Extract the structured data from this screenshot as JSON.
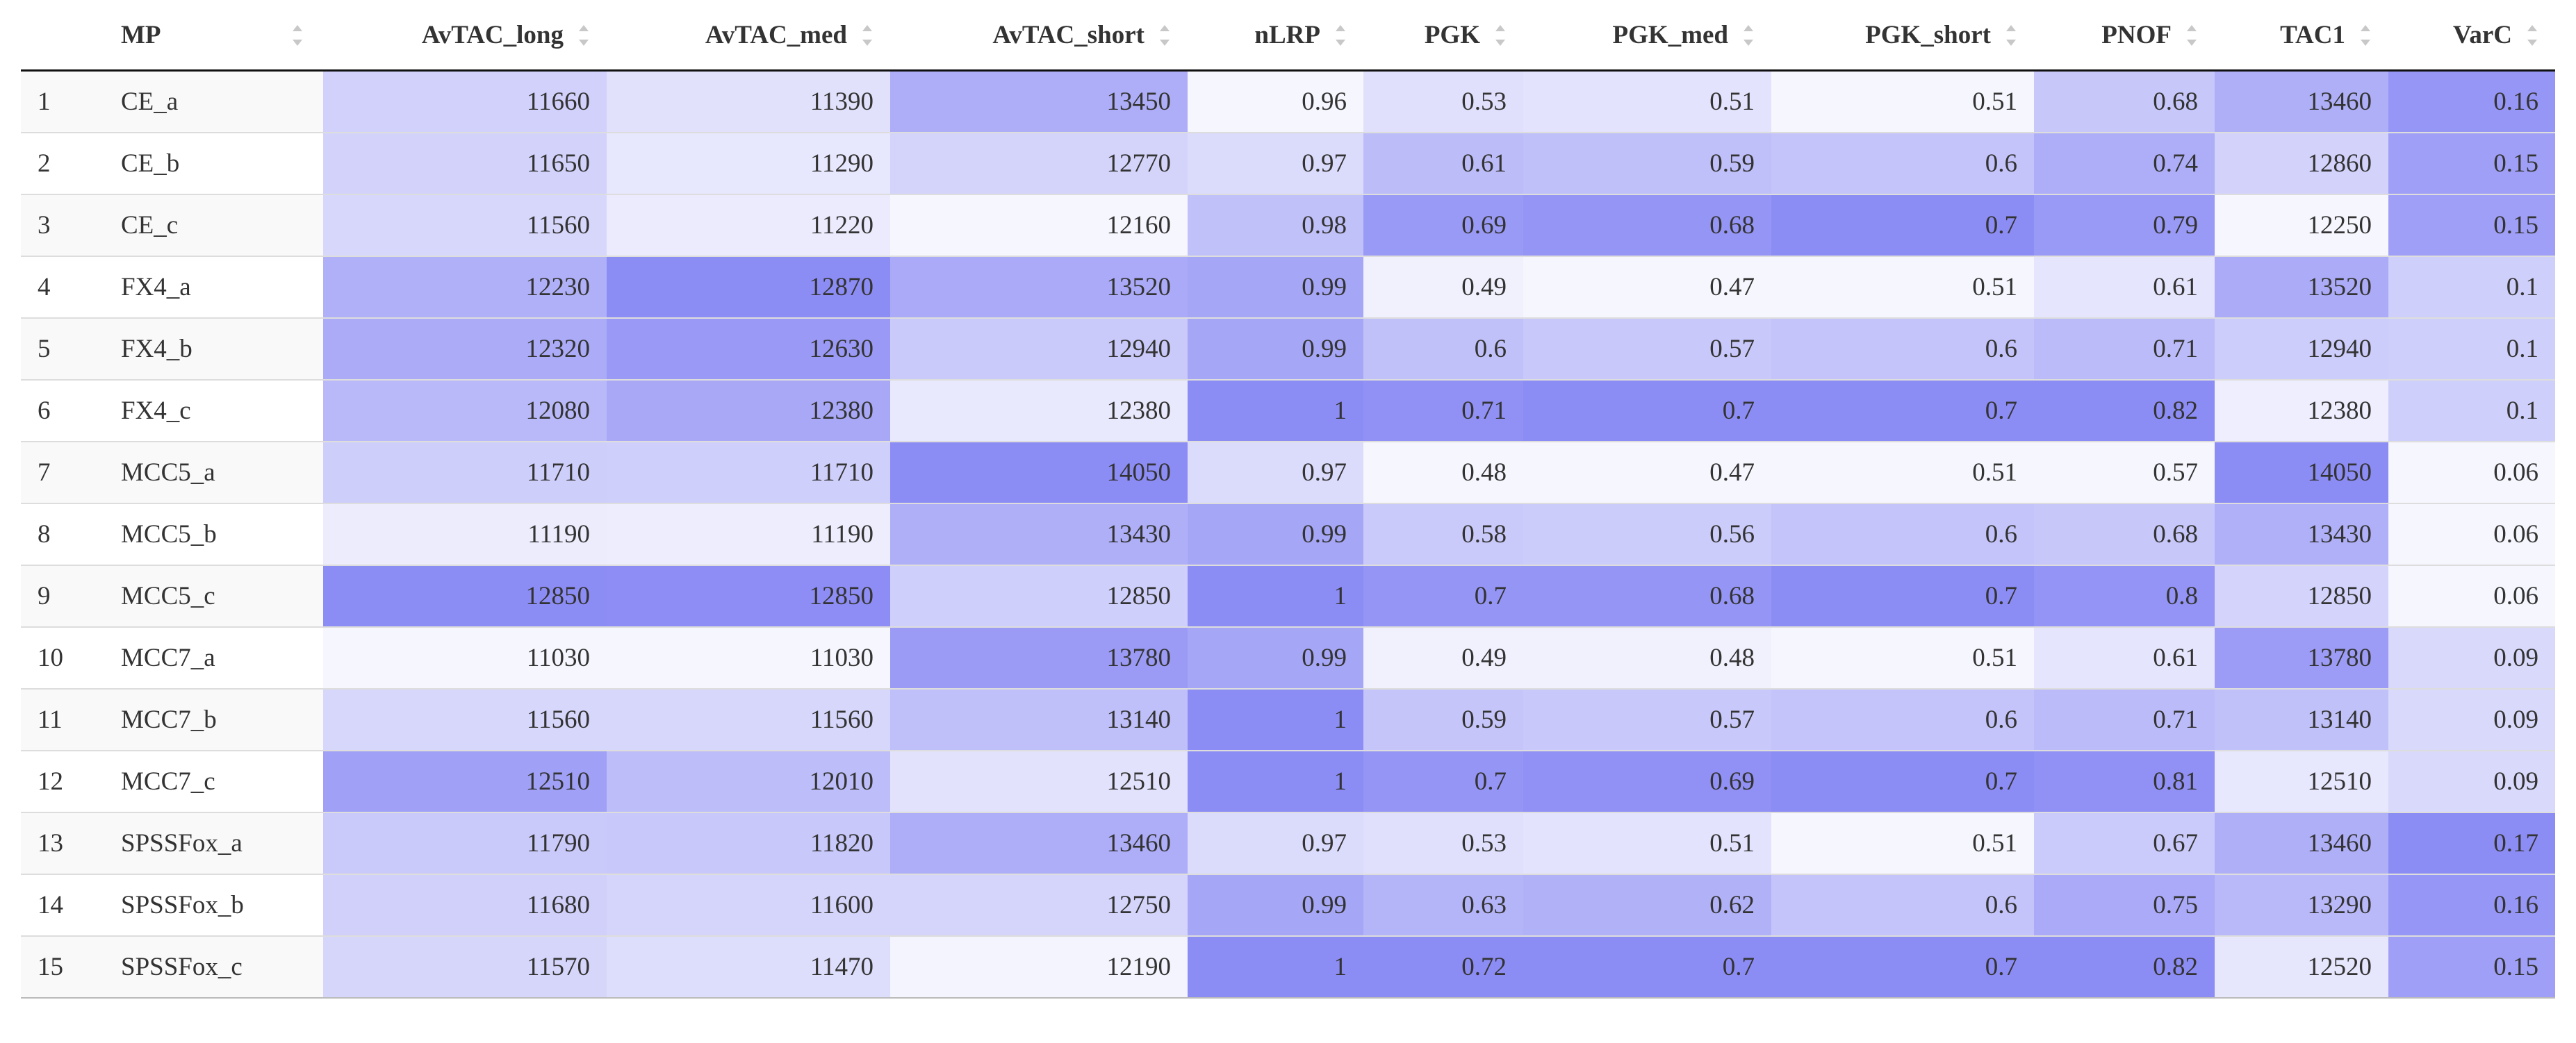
{
  "table": {
    "columns": [
      "",
      "MP",
      "AvTAC_long",
      "AvTAC_med",
      "AvTAC_short",
      "nLRP",
      "PGK",
      "PGK_med",
      "PGK_short",
      "PNOF",
      "TAC1",
      "VarC"
    ],
    "rows": [
      [
        "1",
        "CE_a",
        "11660",
        "11390",
        "13450",
        "0.96",
        "0.53",
        "0.51",
        "0.51",
        "0.68",
        "13460",
        "0.16"
      ],
      [
        "2",
        "CE_b",
        "11650",
        "11290",
        "12770",
        "0.97",
        "0.61",
        "0.59",
        "0.6",
        "0.74",
        "12860",
        "0.15"
      ],
      [
        "3",
        "CE_c",
        "11560",
        "11220",
        "12160",
        "0.98",
        "0.69",
        "0.68",
        "0.7",
        "0.79",
        "12250",
        "0.15"
      ],
      [
        "4",
        "FX4_a",
        "12230",
        "12870",
        "13520",
        "0.99",
        "0.49",
        "0.47",
        "0.51",
        "0.61",
        "13520",
        "0.1"
      ],
      [
        "5",
        "FX4_b",
        "12320",
        "12630",
        "12940",
        "0.99",
        "0.6",
        "0.57",
        "0.6",
        "0.71",
        "12940",
        "0.1"
      ],
      [
        "6",
        "FX4_c",
        "12080",
        "12380",
        "12380",
        "1",
        "0.71",
        "0.7",
        "0.7",
        "0.82",
        "12380",
        "0.1"
      ],
      [
        "7",
        "MCC5_a",
        "11710",
        "11710",
        "14050",
        "0.97",
        "0.48",
        "0.47",
        "0.51",
        "0.57",
        "14050",
        "0.06"
      ],
      [
        "8",
        "MCC5_b",
        "11190",
        "11190",
        "13430",
        "0.99",
        "0.58",
        "0.56",
        "0.6",
        "0.68",
        "13430",
        "0.06"
      ],
      [
        "9",
        "MCC5_c",
        "12850",
        "12850",
        "12850",
        "1",
        "0.7",
        "0.68",
        "0.7",
        "0.8",
        "12850",
        "0.06"
      ],
      [
        "10",
        "MCC7_a",
        "11030",
        "11030",
        "13780",
        "0.99",
        "0.49",
        "0.48",
        "0.51",
        "0.61",
        "13780",
        "0.09"
      ],
      [
        "11",
        "MCC7_b",
        "11560",
        "11560",
        "13140",
        "1",
        "0.59",
        "0.57",
        "0.6",
        "0.71",
        "13140",
        "0.09"
      ],
      [
        "12",
        "MCC7_c",
        "12510",
        "12010",
        "12510",
        "1",
        "0.7",
        "0.69",
        "0.7",
        "0.81",
        "12510",
        "0.09"
      ],
      [
        "13",
        "SPSSFox_a",
        "11790",
        "11820",
        "13460",
        "0.97",
        "0.53",
        "0.51",
        "0.51",
        "0.67",
        "13460",
        "0.17"
      ],
      [
        "14",
        "SPSSFox_b",
        "11680",
        "11600",
        "12750",
        "0.99",
        "0.63",
        "0.62",
        "0.6",
        "0.75",
        "13290",
        "0.16"
      ],
      [
        "15",
        "SPSSFox_c",
        "11570",
        "11470",
        "12190",
        "1",
        "0.72",
        "0.7",
        "0.7",
        "0.82",
        "12520",
        "0.15"
      ]
    ]
  },
  "colors": {
    "cell_low": "#ffffff",
    "cell_high": "#8c8cf5",
    "text": "#333333"
  }
}
